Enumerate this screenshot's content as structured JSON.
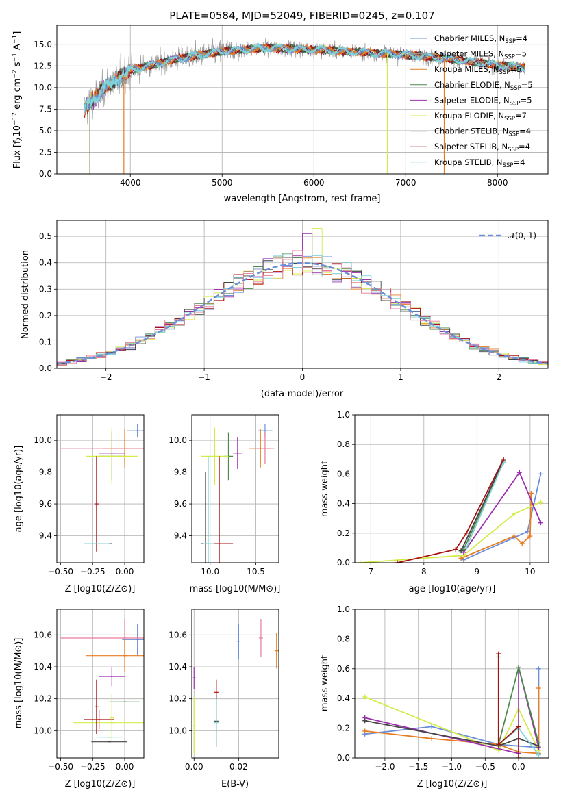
{
  "figure_title": "PLATE=0584, MJD=52049, FIBERID=0245, z=0.107",
  "colors": {
    "chabrier_miles": "#6a8fd8",
    "salpeter_miles": "#9a9a9a",
    "kroupa_miles": "#e77d22",
    "chabrier_elodie": "#4e8a4e",
    "salpeter_elodie": "#9b2fae",
    "kroupa_elodie": "#d4ec4a",
    "chabrier_stelib": "#444444",
    "salpeter_stelib": "#a80f0f",
    "kroupa_stelib": "#7fd3d9",
    "pink": "#e87a9c",
    "normal_curve": "#6a8fd8",
    "grid": "#b0b0b0"
  },
  "chart_data": [
    {
      "id": "spectrum",
      "type": "line",
      "xlabel": "wavelength [Angstrom, rest frame]",
      "ylabel": "Flux [f_λ 10^-17 erg cm^-2 s^-1 A^-1]",
      "xlim": [
        3200,
        8550
      ],
      "ylim": [
        0,
        17.2
      ],
      "xticks": [
        4000,
        5000,
        6000,
        7000,
        8000
      ],
      "yticks": [
        0.0,
        2.5,
        5.0,
        7.5,
        10.0,
        12.5,
        15.0
      ],
      "ytick_labels": [
        "0.0",
        "2.5",
        "5.0",
        "7.5",
        "10.0",
        "12.5",
        "15.0"
      ],
      "legend": [
        {
          "base": "Chabrier MILES, N",
          "sub": "SSP",
          "tail": "=4",
          "color": "#6a8fd8"
        },
        {
          "base": "Salpeter MILES, N",
          "sub": "SSP",
          "tail": "=5",
          "color": "#9a9a9a"
        },
        {
          "base": "Kroupa MILES, N",
          "sub": "SSP",
          "tail": "=5",
          "color": "#e77d22"
        },
        {
          "base": "Chabrier ELODIE, N",
          "sub": "SSP",
          "tail": "=5",
          "color": "#4e8a4e"
        },
        {
          "base": "Salpeter ELODIE, N",
          "sub": "SSP",
          "tail": "=5",
          "color": "#9b2fae"
        },
        {
          "base": "Kroupa ELODIE, N",
          "sub": "SSP",
          "tail": "=7",
          "color": "#d4ec4a"
        },
        {
          "base": "Chabrier STELIB, N",
          "sub": "SSP",
          "tail": "=4",
          "color": "#444444"
        },
        {
          "base": "Salpeter STELIB, N",
          "sub": "SSP",
          "tail": "=4",
          "color": "#a80f0f"
        },
        {
          "base": "Kroupa STELIB, N",
          "sub": "SSP",
          "tail": "=4",
          "color": "#7fd3d9"
        }
      ],
      "spectrum_range": [
        3500,
        8300
      ],
      "continuum_anchors": [
        [
          3500,
          7.5
        ],
        [
          3700,
          9.8
        ],
        [
          4000,
          12.0
        ],
        [
          4500,
          13.3
        ],
        [
          5000,
          14.2
        ],
        [
          5500,
          14.6
        ],
        [
          6000,
          14.4
        ],
        [
          6500,
          14.1
        ],
        [
          7000,
          13.8
        ],
        [
          7500,
          13.3
        ],
        [
          8000,
          12.6
        ],
        [
          8300,
          12.3
        ]
      ],
      "model_dropouts": [
        {
          "series": "kroupa_miles",
          "x": 3560
        },
        {
          "series": "chabrier_elodie",
          "x": 3560
        },
        {
          "series": "kroupa_miles",
          "x": 3930
        },
        {
          "series": "kroupa_elodie",
          "x": 6800
        },
        {
          "series": "salpeter_stelib",
          "x": 7420
        },
        {
          "series": "kroupa_miles",
          "x": 7420
        }
      ]
    },
    {
      "id": "residual_hist",
      "type": "histogram",
      "xlabel": "(data-model)/error",
      "ylabel": "Normed distribution",
      "xlim": [
        -2.5,
        2.5
      ],
      "ylim": [
        0,
        0.56
      ],
      "xticks": [
        -2,
        -1,
        0,
        1,
        2
      ],
      "xtick_labels": [
        "−2",
        "−1",
        "0",
        "1",
        "2"
      ],
      "yticks": [
        0.0,
        0.1,
        0.2,
        0.3,
        0.4,
        0.5
      ],
      "ytick_labels": [
        "0.0",
        "0.1",
        "0.2",
        "0.3",
        "0.4",
        "0.5"
      ],
      "bin_width": 0.1,
      "legend": [
        "𝒩(0, 1)"
      ]
    },
    {
      "id": "age_vs_Z",
      "type": "errorbar",
      "xlabel": "Z [log10(Z/Z⊙)]",
      "ylabel": "age [log10(age/yr)]",
      "xlim": [
        -0.53,
        0.15
      ],
      "ylim": [
        9.23,
        10.16
      ],
      "xticks": [
        -0.5,
        -0.25,
        0.0
      ],
      "xtick_labels": [
        "−0.50",
        "−0.25",
        "0.00"
      ],
      "yticks": [
        9.4,
        9.6,
        9.8,
        10.0
      ],
      "ytick_labels": [
        "9.4",
        "9.6",
        "9.8",
        "10.0"
      ],
      "points": [
        {
          "x": 0.1,
          "y": 10.06,
          "xe": 0.08,
          "ye": 0.04,
          "c": "#6a8fd8"
        },
        {
          "x": -0.2,
          "y": 9.35,
          "xe": 0.1,
          "ye": 0.0,
          "c": "#6a8fd8"
        },
        {
          "x": 0.0,
          "y": 9.95,
          "xe": 0.17,
          "ye": 0.12,
          "c": "#e77d22"
        },
        {
          "x": 0.0,
          "y": 9.95,
          "xe": 0.5,
          "ye": 0.0,
          "c": "#e87a9c"
        },
        {
          "x": -0.1,
          "y": 9.9,
          "xe": 0.1,
          "ye": 0.15,
          "c": "#4e8a4e"
        },
        {
          "x": -0.1,
          "y": 9.92,
          "xe": 0.1,
          "ye": 0.0,
          "c": "#9b2fae"
        },
        {
          "x": -0.1,
          "y": 9.9,
          "xe": 0.2,
          "ye": 0.18,
          "c": "#d4ec4a"
        },
        {
          "x": -0.2,
          "y": 9.35,
          "xe": 0.1,
          "ye": 0.0,
          "c": "#444444"
        },
        {
          "x": -0.22,
          "y": 9.6,
          "xe": 0.0,
          "ye": 0.3,
          "c": "#a80f0f"
        },
        {
          "x": -0.22,
          "y": 9.35,
          "xe": 0.1,
          "ye": 0.0,
          "c": "#7fd3d9"
        }
      ]
    },
    {
      "id": "age_vs_mass",
      "type": "errorbar",
      "xlabel": "mass [log10(M/M⊙)]",
      "ylabel": "",
      "xlim": [
        9.8,
        10.75
      ],
      "ylim": [
        9.23,
        10.16
      ],
      "xticks": [
        10.0,
        10.5
      ],
      "xtick_labels": [
        "10.0",
        "10.5"
      ],
      "yticks": [
        9.4,
        9.6,
        9.8,
        10.0
      ],
      "ytick_labels": [
        "9.4",
        "9.6",
        "9.8",
        "10.0"
      ],
      "points": [
        {
          "x": 10.6,
          "y": 10.06,
          "xe": 0.08,
          "ye": 0.04,
          "c": "#6a8fd8"
        },
        {
          "x": 10.55,
          "y": 9.95,
          "xe": 0.12,
          "ye": 0.12,
          "c": "#e77d22"
        },
        {
          "x": 10.6,
          "y": 9.95,
          "xe": 0.1,
          "ye": 0.1,
          "c": "#e87a9c"
        },
        {
          "x": 10.2,
          "y": 9.9,
          "xe": 0.05,
          "ye": 0.15,
          "c": "#4e8a4e"
        },
        {
          "x": 10.3,
          "y": 9.92,
          "xe": 0.05,
          "ye": 0.1,
          "c": "#9b2fae"
        },
        {
          "x": 10.05,
          "y": 9.9,
          "xe": 0.15,
          "ye": 0.18,
          "c": "#d4ec4a"
        },
        {
          "x": 9.95,
          "y": 9.35,
          "xe": 0.05,
          "ye": 0.45,
          "c": "#444444"
        },
        {
          "x": 10.1,
          "y": 9.35,
          "xe": 0.15,
          "ye": 0.55,
          "c": "#a80f0f"
        },
        {
          "x": 9.98,
          "y": 9.35,
          "xe": 0.06,
          "ye": 0.55,
          "c": "#7fd3d9"
        }
      ]
    },
    {
      "id": "massweight_vs_age",
      "type": "line",
      "xlabel": "age [log10(age/yr)]",
      "ylabel": "mass weight",
      "xlim": [
        6.7,
        10.35
      ],
      "ylim": [
        0,
        1.0
      ],
      "xticks": [
        7,
        8,
        9,
        10
      ],
      "xtick_labels": [
        "7",
        "8",
        "9",
        "10"
      ],
      "yticks": [
        0.0,
        0.2,
        0.4,
        0.6,
        0.8,
        1.0
      ],
      "ytick_labels": [
        "0.0",
        "0.2",
        "0.4",
        "0.6",
        "0.8",
        "1.0"
      ],
      "series": [
        {
          "c": "#6a8fd8",
          "x": [
            8.75,
            9.7,
            9.95,
            10.2
          ],
          "y": [
            0.02,
            0.17,
            0.21,
            0.6
          ]
        },
        {
          "c": "#e77d22",
          "x": [
            8.7,
            9.7,
            9.85,
            10.0,
            10.02
          ],
          "y": [
            0.03,
            0.18,
            0.13,
            0.18,
            0.47
          ]
        },
        {
          "c": "#d4ec4a",
          "x": [
            6.8,
            8.75,
            9.7,
            10.2
          ],
          "y": [
            0.0,
            0.05,
            0.33,
            0.41
          ]
        },
        {
          "c": "#9b2fae",
          "x": [
            8.75,
            9.8,
            10.2
          ],
          "y": [
            0.07,
            0.61,
            0.27
          ]
        },
        {
          "c": "#4e8a4e",
          "x": [
            8.75,
            9.5
          ],
          "y": [
            0.09,
            0.68
          ]
        },
        {
          "c": "#444444",
          "x": [
            8.7,
            9.5
          ],
          "y": [
            0.08,
            0.69
          ]
        },
        {
          "c": "#7fd3d9",
          "x": [
            8.8,
            9.5
          ],
          "y": [
            0.1,
            0.68
          ]
        },
        {
          "c": "#a80f0f",
          "x": [
            7.5,
            8.6,
            8.8,
            9.5
          ],
          "y": [
            0.0,
            0.09,
            0.2,
            0.7
          ]
        }
      ]
    },
    {
      "id": "mass_vs_Z",
      "type": "errorbar",
      "xlabel": "Z [log10(Z/Z⊙)]",
      "ylabel": "mass [log10(M/M⊙)]",
      "xlim": [
        -0.53,
        0.15
      ],
      "ylim": [
        9.83,
        10.76
      ],
      "xticks": [
        -0.5,
        -0.25,
        0.0
      ],
      "xtick_labels": [
        "−0.50",
        "−0.25",
        "0.00"
      ],
      "yticks": [
        10.0,
        10.2,
        10.4,
        10.6
      ],
      "ytick_labels": [
        "10.0",
        "10.2",
        "10.4",
        "10.6"
      ],
      "points": [
        {
          "x": 0.1,
          "y": 10.57,
          "xe": 0.12,
          "ye": 0.1,
          "c": "#6a8fd8"
        },
        {
          "x": 0.0,
          "y": 10.58,
          "xe": 0.5,
          "ye": 0.12,
          "c": "#e87a9c"
        },
        {
          "x": 0.0,
          "y": 10.47,
          "xe": 0.3,
          "ye": 0.1,
          "c": "#e77d22"
        },
        {
          "x": -0.1,
          "y": 10.34,
          "xe": 0.1,
          "ye": 0.06,
          "c": "#9b2fae"
        },
        {
          "x": 0.0,
          "y": 10.18,
          "xe": 0.12,
          "ye": 0.0,
          "c": "#4e8a4e"
        },
        {
          "x": -0.2,
          "y": 10.07,
          "xe": 0.12,
          "ye": 0.06,
          "c": "#a80f0f"
        },
        {
          "x": -0.1,
          "y": 10.05,
          "xe": 0.3,
          "ye": 0.0,
          "c": "#d4ec4a"
        },
        {
          "x": -0.12,
          "y": 9.96,
          "xe": 0.1,
          "ye": 0.0,
          "c": "#7fd3d9"
        },
        {
          "x": -0.12,
          "y": 9.93,
          "xe": 0.14,
          "ye": 0.0,
          "c": "#444444"
        },
        {
          "x": -0.22,
          "y": 10.15,
          "xe": 0.0,
          "ye": 0.17,
          "c": "#a80f0f"
        },
        {
          "x": -0.1,
          "y": 10.08,
          "xe": 0.0,
          "ye": 0.15,
          "c": "#d4ec4a"
        }
      ]
    },
    {
      "id": "mass_vs_EBV",
      "type": "errorbar",
      "xlabel": "E(B-V)",
      "ylabel": "",
      "xlim": [
        -0.001,
        0.038
      ],
      "ylim": [
        9.83,
        10.76
      ],
      "xticks": [
        0.0,
        0.02
      ],
      "xtick_labels": [
        "0.00",
        "0.02"
      ],
      "yticks": [
        10.0,
        10.2,
        10.4,
        10.6
      ],
      "ytick_labels": [
        "10.0",
        "10.2",
        "10.4",
        "10.6"
      ],
      "points": [
        {
          "x": 0.02,
          "y": 10.56,
          "xe": 0.0,
          "ye": 0.11,
          "c": "#6a8fd8"
        },
        {
          "x": 0.03,
          "y": 10.58,
          "xe": 0.0,
          "ye": 0.12,
          "c": "#e87a9c"
        },
        {
          "x": 0.037,
          "y": 10.5,
          "xe": 0.0,
          "ye": 0.11,
          "c": "#e77d22"
        },
        {
          "x": 0.0,
          "y": 10.33,
          "xe": 0.0,
          "ye": 0.07,
          "c": "#9b2fae"
        },
        {
          "x": 0.0,
          "y": 10.03,
          "xe": 0.0,
          "ye": 0.18,
          "c": "#d4ec4a"
        },
        {
          "x": 0.01,
          "y": 10.24,
          "xe": 0.0,
          "ye": 0.08,
          "c": "#a80f0f"
        },
        {
          "x": 0.01,
          "y": 10.06,
          "xe": 0.0,
          "ye": 0.16,
          "c": "#444444"
        },
        {
          "x": 0.01,
          "y": 10.05,
          "xe": 0.0,
          "ye": 0.15,
          "c": "#7fd3d9"
        }
      ]
    },
    {
      "id": "massweight_vs_Z",
      "type": "line",
      "xlabel": "Z [log10(Z/Z⊙)]",
      "ylabel": "mass weight",
      "xlim": [
        -2.45,
        0.45
      ],
      "ylim": [
        0,
        1.0
      ],
      "xticks": [
        -2.0,
        -1.5,
        -1.0,
        -0.5,
        0.0
      ],
      "xtick_labels": [
        "−2.0",
        "−1.5",
        "−1.0",
        "−0.5",
        "0.0"
      ],
      "yticks": [
        0.0,
        0.2,
        0.4,
        0.6,
        0.8,
        1.0
      ],
      "ytick_labels": [
        "0.0",
        "0.2",
        "0.4",
        "0.6",
        "0.8",
        "1.0"
      ],
      "series": [
        {
          "c": "#6a8fd8",
          "x": [
            -2.3,
            -1.3,
            -0.3,
            0.3,
            0.3
          ],
          "y": [
            0.16,
            0.21,
            0.09,
            0.07,
            0.6
          ]
        },
        {
          "c": "#e77d22",
          "x": [
            -2.3,
            -1.3,
            -0.3,
            0.0,
            0.3,
            0.3
          ],
          "y": [
            0.18,
            0.13,
            0.09,
            0.04,
            0.03,
            0.47
          ]
        },
        {
          "c": "#d4ec4a",
          "x": [
            -2.3,
            -0.3,
            0.0,
            0.3
          ],
          "y": [
            0.41,
            0.05,
            0.33,
            0.05
          ]
        },
        {
          "c": "#9b2fae",
          "x": [
            -2.3,
            0.0,
            0.0,
            0.3
          ],
          "y": [
            0.27,
            0.03,
            0.61,
            0.07
          ]
        },
        {
          "c": "#4e8a4e",
          "x": [
            -0.3,
            0.0,
            0.3
          ],
          "y": [
            0.09,
            0.61,
            0.1
          ]
        },
        {
          "c": "#444444",
          "x": [
            -2.3,
            -0.3,
            0.0,
            0.3
          ],
          "y": [
            0.25,
            0.08,
            0.13,
            0.08
          ]
        },
        {
          "c": "#7fd3d9",
          "x": [
            -0.3,
            -0.3,
            0.0,
            0.3
          ],
          "y": [
            0.68,
            0.09,
            0.2,
            0.02
          ]
        },
        {
          "c": "#a80f0f",
          "x": [
            -0.3,
            -0.3,
            0.0,
            0.0
          ],
          "y": [
            0.7,
            0.09,
            0.21,
            0.0
          ]
        }
      ]
    }
  ]
}
